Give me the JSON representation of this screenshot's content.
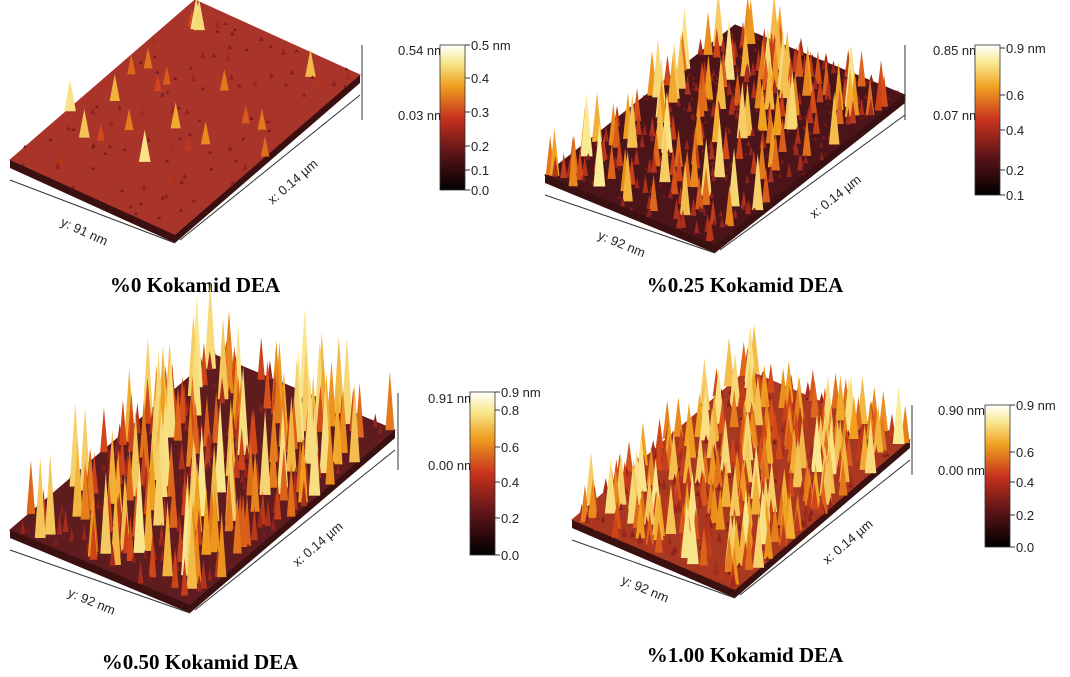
{
  "panels": [
    {
      "caption": "%0 Kokamid DEA",
      "y_axis": "y: 91 nm",
      "x_axis": "x: 0.14 µm",
      "max": "0.54 nm",
      "min": "0.03 nm",
      "colorbar": [
        "0.5 nm",
        "0.4",
        "0.3",
        "0.2",
        "0.1",
        "0.0"
      ]
    },
    {
      "caption": "%0.25 Kokamid DEA",
      "y_axis": "y: 92 nm",
      "x_axis": "x: 0.14 µm",
      "max": "0.85 nm",
      "min": "0.07 nm",
      "colorbar": [
        "0.9 nm",
        "0.6",
        "0.4",
        "0.2",
        "0.1"
      ]
    },
    {
      "caption": "%0.50 Kokamid DEA",
      "y_axis": "y: 92 nm",
      "x_axis": "x: 0.14 µm",
      "max": "0.91 nm",
      "min": "0.00 nm",
      "colorbar": [
        "0.9 nm",
        "0.8",
        "0.6",
        "0.4",
        "0.2",
        "0.0"
      ]
    },
    {
      "caption": "%1.00 Kokamid DEA",
      "y_axis": "y: 92 nm",
      "x_axis": "x: 0.14 µm",
      "max": "0.90 nm",
      "min": "0.00 nm",
      "colorbar": [
        "0.9 nm",
        "0.6",
        "0.4",
        "0.2",
        "0.0"
      ]
    }
  ]
}
